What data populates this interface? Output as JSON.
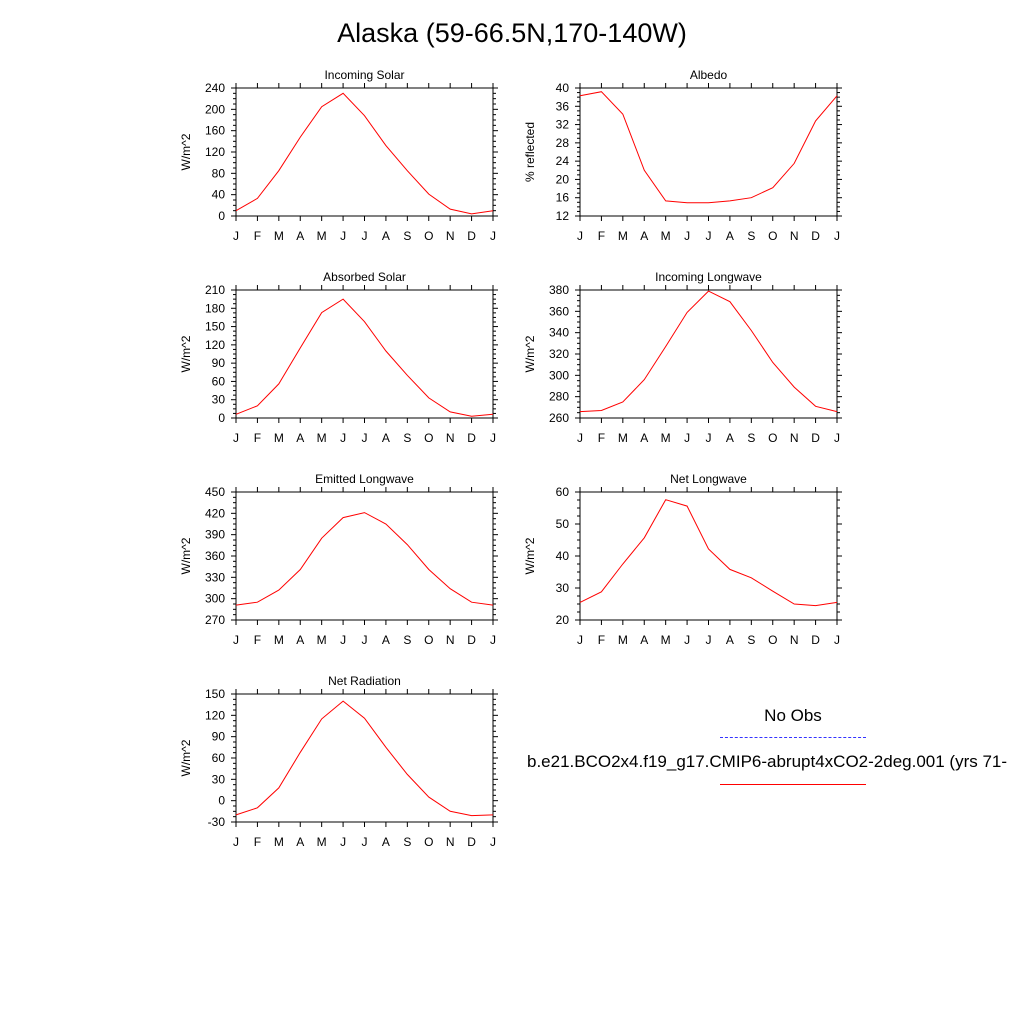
{
  "title": "Alaska (59-66.5N,170-140W)",
  "month_labels": [
    "J",
    "F",
    "M",
    "A",
    "M",
    "J",
    "J",
    "A",
    "S",
    "O",
    "N",
    "D",
    "J"
  ],
  "legend": {
    "obs_label": "No Obs",
    "model_label": "b.e21.BCO2x4.f19_g17.CMIP6-abrupt4xCO2-2deg.001 (yrs 71-",
    "obs_color": "#3333ff",
    "model_color": "#ff0000"
  },
  "chart_data": [
    {
      "type": "line",
      "title": "Incoming Solar",
      "ylabel": "W/m^2",
      "x": [
        "J",
        "F",
        "M",
        "A",
        "M",
        "J",
        "J",
        "A",
        "S",
        "O",
        "N",
        "D",
        "J"
      ],
      "ylim": [
        0,
        240
      ],
      "yticks": [
        0,
        40,
        80,
        120,
        160,
        200,
        240
      ],
      "series": [
        {
          "values": [
            10,
            33,
            85,
            148,
            205,
            230,
            188,
            132,
            85,
            41,
            13,
            4,
            10
          ],
          "color": "#ff0000"
        }
      ]
    },
    {
      "type": "line",
      "title": "Albedo",
      "ylabel": "% reflected",
      "x": [
        "J",
        "F",
        "M",
        "A",
        "M",
        "J",
        "J",
        "A",
        "S",
        "O",
        "N",
        "D",
        "J"
      ],
      "ylim": [
        12,
        40
      ],
      "yticks": [
        12,
        16,
        20,
        24,
        28,
        32,
        36,
        40
      ],
      "series": [
        {
          "values": [
            38.3,
            39.2,
            34.3,
            22.0,
            15.3,
            14.9,
            14.9,
            15.3,
            16.0,
            18.2,
            23.5,
            32.8,
            38.3
          ],
          "color": "#ff0000"
        }
      ]
    },
    {
      "type": "line",
      "title": "Absorbed Solar",
      "ylabel": "W/m^2",
      "x": [
        "J",
        "F",
        "M",
        "A",
        "M",
        "J",
        "J",
        "A",
        "S",
        "O",
        "N",
        "D",
        "J"
      ],
      "ylim": [
        0,
        210
      ],
      "yticks": [
        0,
        30,
        60,
        90,
        120,
        150,
        180,
        210
      ],
      "series": [
        {
          "values": [
            6,
            20,
            56,
            115,
            173,
            195,
            158,
            110,
            70,
            33,
            10,
            3,
            6
          ],
          "color": "#ff0000"
        }
      ]
    },
    {
      "type": "line",
      "title": "Incoming Longwave",
      "ylabel": "W/m^2",
      "x": [
        "J",
        "F",
        "M",
        "A",
        "M",
        "J",
        "J",
        "A",
        "S",
        "O",
        "N",
        "D",
        "J"
      ],
      "ylim": [
        260,
        380
      ],
      "yticks": [
        260,
        280,
        300,
        320,
        340,
        360,
        380
      ],
      "series": [
        {
          "values": [
            266,
            267,
            275,
            296,
            327,
            359,
            379,
            369,
            342,
            312,
            289,
            271,
            266
          ],
          "color": "#ff0000"
        }
      ]
    },
    {
      "type": "line",
      "title": "Emitted Longwave",
      "ylabel": "W/m^2",
      "x": [
        "J",
        "F",
        "M",
        "A",
        "M",
        "J",
        "J",
        "A",
        "S",
        "O",
        "N",
        "D",
        "J"
      ],
      "ylim": [
        270,
        450
      ],
      "yticks": [
        270,
        300,
        330,
        360,
        390,
        420,
        450
      ],
      "series": [
        {
          "values": [
            291,
            295,
            312,
            341,
            385,
            414,
            421,
            405,
            376,
            341,
            314,
            295,
            291
          ],
          "color": "#ff0000"
        }
      ]
    },
    {
      "type": "line",
      "title": "Net Longwave",
      "ylabel": "W/m^2",
      "x": [
        "J",
        "F",
        "M",
        "A",
        "M",
        "J",
        "J",
        "A",
        "S",
        "O",
        "N",
        "D",
        "J"
      ],
      "ylim": [
        20,
        60
      ],
      "yticks": [
        20,
        30,
        40,
        50,
        60
      ],
      "series": [
        {
          "values": [
            25.5,
            28.8,
            37.5,
            45.7,
            57.6,
            55.6,
            42.2,
            35.8,
            33.2,
            29.0,
            25.0,
            24.5,
            25.5
          ],
          "color": "#ff0000"
        }
      ]
    },
    {
      "type": "line",
      "title": "Net Radiation",
      "ylabel": "W/m^2",
      "x": [
        "J",
        "F",
        "M",
        "A",
        "M",
        "J",
        "J",
        "A",
        "S",
        "O",
        "N",
        "D",
        "J"
      ],
      "ylim": [
        -30,
        150
      ],
      "yticks": [
        -30,
        0,
        30,
        60,
        90,
        120,
        150
      ],
      "series": [
        {
          "values": [
            -20,
            -10,
            18,
            68,
            115,
            140,
            116,
            75,
            37,
            5,
            -15,
            -21,
            -20
          ],
          "color": "#ff0000"
        }
      ]
    }
  ]
}
